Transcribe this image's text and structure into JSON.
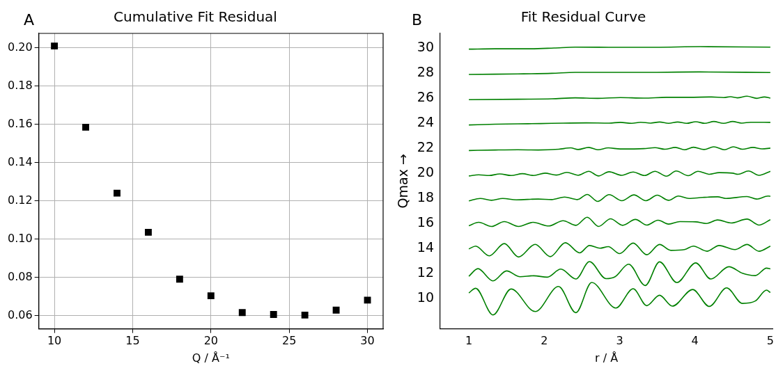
{
  "chart_data": [
    {
      "type": "scatter",
      "title": "Cumulative Fit Residual",
      "xlabel": "Q / Å⁻¹",
      "annotations": [
        "A"
      ],
      "marker": "square",
      "grid": true,
      "legend": false,
      "xlim": [
        9,
        31
      ],
      "xticks": [
        10,
        15,
        20,
        25,
        30
      ],
      "ylim": [
        0.053,
        0.2076
      ],
      "yticks": [
        0.06,
        0.08,
        {
          "value": 0.1,
          "label": "0.10"
        },
        0.12,
        0.14,
        0.16,
        0.18,
        {
          "value": 0.2,
          "label": "0.20"
        }
      ],
      "series": [
        {
          "color": "#000000",
          "x": [
            10,
            12,
            14,
            16,
            18,
            20,
            22,
            24,
            26,
            28,
            30
          ],
          "values": [
            0.201,
            0.1585,
            0.124,
            0.1035,
            0.079,
            0.0703,
            0.0615,
            0.0605,
            0.0602,
            0.0628,
            0.068
          ]
        }
      ]
    },
    {
      "type": "line",
      "title": "Fit Residual Curve",
      "xlabel": "r / Å",
      "ylabel": "Qmax →",
      "annotations": [
        "B"
      ],
      "marker": "none",
      "grid": false,
      "legend": false,
      "line_style": "solid",
      "xlim": [
        0.62,
        5.03
      ],
      "xticks": [
        1,
        2,
        3,
        4,
        5
      ],
      "ylim": [
        7.56,
        31.17
      ],
      "yticks": [
        10,
        12,
        14,
        16,
        18,
        20,
        22,
        24,
        26,
        28,
        30
      ],
      "series": [
        {
          "color": "#008000",
          "x": [
            1.0,
            1.09,
            1.32,
            1.56,
            1.88,
            2.19,
            2.42,
            2.63,
            2.95,
            3.18,
            3.36,
            3.53,
            3.7,
            3.97,
            4.19,
            4.42,
            4.63,
            4.8,
            4.95,
            5.0
          ],
          "values": [
            10.43,
            10.8,
            8.67,
            10.74,
            8.94,
            10.94,
            8.85,
            11.26,
            9.22,
            10.76,
            9.41,
            10.24,
            9.37,
            10.7,
            9.35,
            10.83,
            9.59,
            9.78,
            10.65,
            10.46
          ]
        },
        {
          "color": "#008000",
          "x": [
            1.0,
            1.12,
            1.32,
            1.5,
            1.68,
            1.86,
            2.04,
            2.22,
            2.42,
            2.6,
            2.82,
            2.94,
            3.12,
            3.34,
            3.53,
            3.76,
            4.01,
            4.21,
            4.45,
            4.63,
            4.8,
            4.95,
            5.0
          ],
          "values": [
            11.76,
            12.37,
            11.39,
            12.19,
            11.72,
            11.8,
            11.69,
            12.33,
            11.54,
            12.93,
            11.57,
            11.72,
            12.72,
            11.02,
            12.91,
            11.26,
            12.83,
            11.54,
            12.52,
            12.0,
            11.81,
            12.41,
            12.35
          ]
        },
        {
          "color": "#008000",
          "x": [
            1.0,
            1.09,
            1.27,
            1.47,
            1.66,
            1.88,
            2.08,
            2.28,
            2.47,
            2.6,
            2.74,
            2.85,
            3.0,
            3.18,
            3.36,
            3.53,
            3.68,
            3.86,
            3.98,
            4.16,
            4.32,
            4.53,
            4.69,
            4.85,
            5.0
          ],
          "values": [
            13.94,
            14.17,
            13.39,
            14.37,
            13.3,
            14.31,
            13.33,
            14.44,
            13.63,
            14.22,
            14.0,
            14.13,
            13.57,
            14.41,
            13.48,
            14.3,
            13.83,
            13.89,
            14.17,
            13.76,
            14.22,
            13.89,
            14.3,
            13.76,
            14.17
          ]
        },
        {
          "color": "#008000",
          "x": [
            1.0,
            1.13,
            1.3,
            1.47,
            1.66,
            1.85,
            2.06,
            2.25,
            2.42,
            2.57,
            2.72,
            2.88,
            3.04,
            3.21,
            3.36,
            3.51,
            3.65,
            3.8,
            4.01,
            4.15,
            4.3,
            4.48,
            4.69,
            4.85,
            5.0
          ],
          "values": [
            15.8,
            16.07,
            15.74,
            16.13,
            15.74,
            16.07,
            15.78,
            16.2,
            15.83,
            16.48,
            15.74,
            16.35,
            15.83,
            16.3,
            15.85,
            16.24,
            15.93,
            16.13,
            16.11,
            15.98,
            16.26,
            16.02,
            16.33,
            15.85,
            16.28
          ]
        },
        {
          "color": "#008000",
          "x": [
            1.0,
            1.15,
            1.3,
            1.45,
            1.63,
            1.92,
            2.1,
            2.27,
            2.44,
            2.57,
            2.71,
            2.86,
            3.03,
            3.19,
            3.35,
            3.5,
            3.65,
            3.78,
            3.92,
            4.1,
            4.3,
            4.41,
            4.69,
            4.82,
            4.97,
            5.0
          ],
          "values": [
            17.78,
            17.98,
            17.83,
            17.98,
            17.87,
            17.93,
            17.89,
            18.09,
            17.89,
            18.3,
            17.74,
            18.28,
            17.8,
            18.26,
            17.8,
            18.24,
            17.83,
            18.17,
            17.98,
            18.06,
            18.11,
            17.98,
            18.13,
            17.93,
            18.17,
            18.15
          ]
        },
        {
          "color": "#008000",
          "x": [
            1.0,
            1.13,
            1.27,
            1.41,
            1.56,
            1.71,
            1.86,
            2.01,
            2.16,
            2.3,
            2.45,
            2.59,
            2.72,
            2.86,
            3.03,
            3.18,
            3.33,
            3.47,
            3.62,
            3.75,
            3.91,
            4.04,
            4.19,
            4.32,
            4.5,
            4.57,
            4.71,
            4.85,
            5.0
          ],
          "values": [
            19.78,
            19.87,
            19.81,
            19.94,
            19.81,
            19.96,
            19.81,
            20.0,
            19.85,
            20.06,
            19.83,
            20.15,
            19.78,
            20.11,
            19.83,
            20.09,
            19.81,
            20.15,
            19.76,
            20.17,
            19.8,
            20.15,
            19.91,
            20.04,
            20.0,
            19.91,
            20.17,
            19.83,
            20.15
          ]
        },
        {
          "color": "#008000",
          "x": [
            1.0,
            1.35,
            1.65,
            1.92,
            2.19,
            2.35,
            2.45,
            2.59,
            2.71,
            2.85,
            3.01,
            3.32,
            3.47,
            3.6,
            3.74,
            3.86,
            3.98,
            4.12,
            4.25,
            4.39,
            4.51,
            4.63,
            4.77,
            4.89,
            5.0
          ],
          "values": [
            21.81,
            21.85,
            21.87,
            21.85,
            21.91,
            22.02,
            21.89,
            22.06,
            21.87,
            22.02,
            21.93,
            21.96,
            22.04,
            21.91,
            22.06,
            21.87,
            22.07,
            21.89,
            22.11,
            21.87,
            22.11,
            21.91,
            22.06,
            21.94,
            22.0
          ]
        },
        {
          "color": "#008000",
          "x": [
            1.0,
            1.35,
            1.65,
            1.95,
            2.25,
            2.56,
            2.86,
            3.01,
            3.16,
            3.28,
            3.41,
            3.53,
            3.65,
            3.77,
            3.89,
            4.01,
            4.13,
            4.25,
            4.38,
            4.5,
            4.62,
            4.74,
            5.0
          ],
          "values": [
            23.85,
            23.91,
            23.94,
            23.96,
            24.0,
            24.02,
            24.0,
            24.06,
            23.98,
            24.07,
            24.0,
            24.09,
            23.98,
            24.09,
            23.98,
            24.11,
            23.98,
            24.13,
            23.98,
            24.13,
            24.0,
            24.07,
            24.06
          ]
        },
        {
          "color": "#008000",
          "x": [
            1.0,
            1.65,
            2.1,
            2.41,
            2.71,
            3.01,
            3.32,
            3.62,
            3.92,
            4.22,
            4.38,
            4.47,
            4.56,
            4.69,
            4.82,
            4.92,
            5.0
          ],
          "values": [
            25.87,
            25.91,
            25.94,
            26.02,
            25.98,
            26.04,
            26.0,
            26.06,
            26.06,
            26.09,
            26.04,
            26.11,
            26.02,
            26.15,
            25.98,
            26.09,
            26.0
          ]
        },
        {
          "color": "#008000",
          "x": [
            1.0,
            1.65,
            2.1,
            2.41,
            2.86,
            3.47,
            4.07,
            5.0
          ],
          "values": [
            27.89,
            27.93,
            27.98,
            28.06,
            28.06,
            28.06,
            28.09,
            28.04
          ]
        },
        {
          "color": "#008000",
          "x": [
            1.0,
            1.35,
            1.8,
            2.13,
            2.41,
            2.86,
            3.47,
            4.07,
            5.0
          ],
          "values": [
            29.91,
            29.94,
            29.94,
            30.0,
            30.07,
            30.06,
            30.06,
            30.11,
            30.07
          ]
        }
      ]
    }
  ]
}
